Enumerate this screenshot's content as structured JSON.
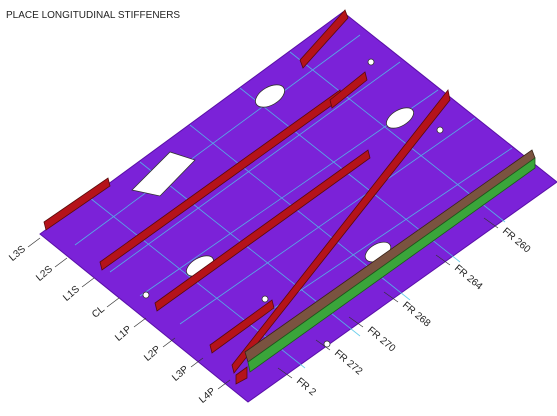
{
  "header": {
    "title": "PLACE LONGITUDINAL STIFFENERS"
  },
  "longitudinal_labels": [
    "L3S",
    "L2S",
    "L1S",
    "CL",
    "L1P",
    "L2P",
    "L3P",
    "L4P"
  ],
  "frame_labels": [
    "FR 260",
    "FR 264",
    "FR 268",
    "FR 270",
    "FR 272",
    "FR 2"
  ]
}
